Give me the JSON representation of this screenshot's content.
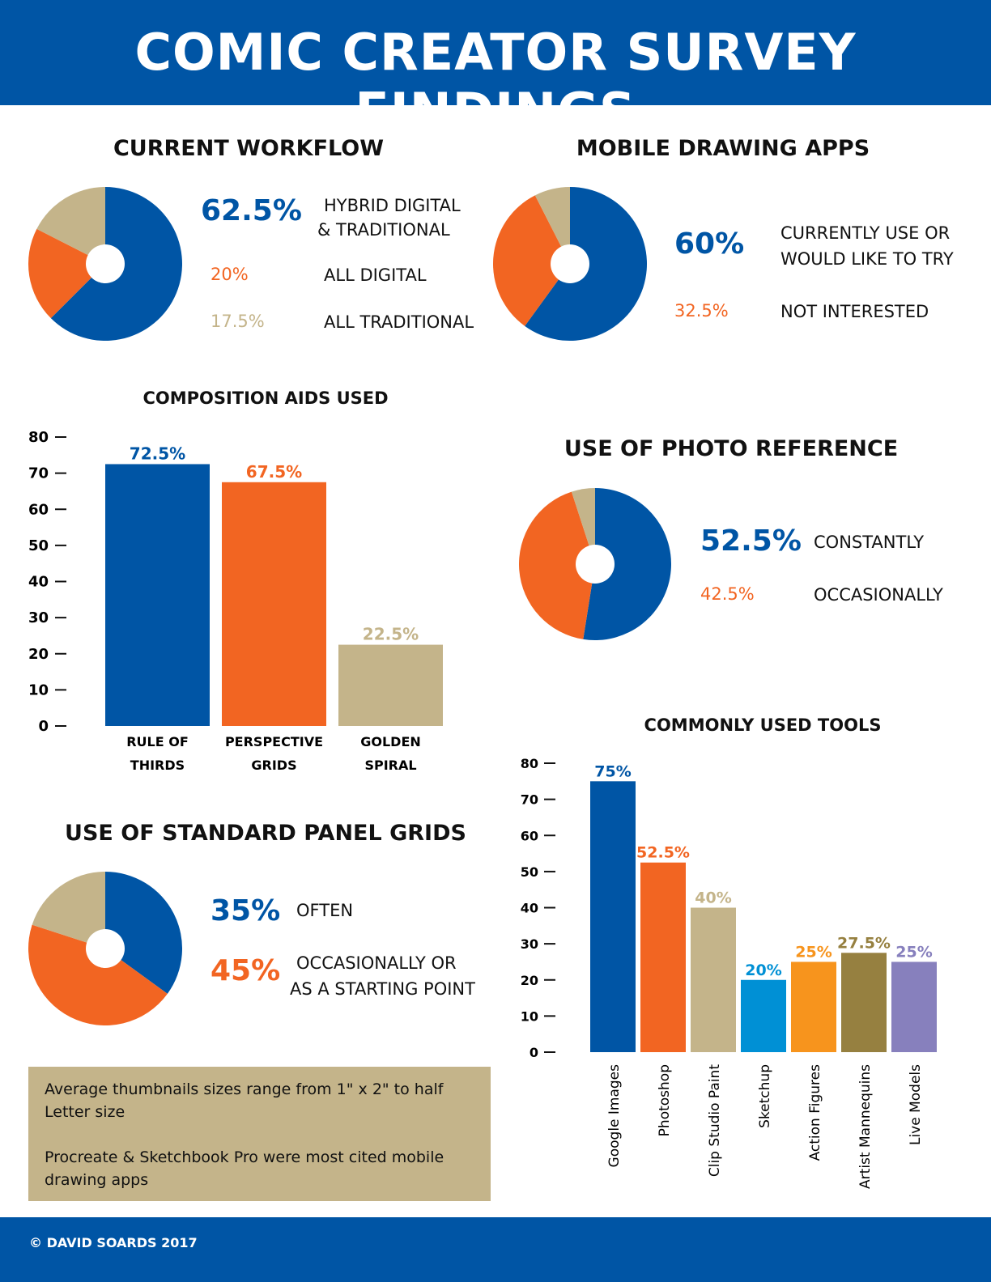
{
  "title": "COMIC CREATOR SURVEY FINDINGS",
  "colors": {
    "blue": "#0055A5",
    "orange": "#F26522",
    "tan": "#C4B48A",
    "sky": "#0090D5",
    "amber": "#F7941D",
    "olive": "#968040",
    "lavender": "#8780BD"
  },
  "chart_data": [
    {
      "type": "pie",
      "title": "CURRENT WORKFLOW",
      "donut": true,
      "slices": [
        {
          "label": "HYBRID DIGITAL & TRADITIONAL",
          "label_lines": [
            "HYBRID DIGITAL",
            "& TRADITIONAL"
          ],
          "value": 62.5,
          "display": "62.5%",
          "color": "#0055A5"
        },
        {
          "label": "ALL DIGITAL",
          "value": 20,
          "display": "20%",
          "color": "#F26522"
        },
        {
          "label": "ALL TRADITIONAL",
          "value": 17.5,
          "display": "17.5%",
          "color": "#C4B48A"
        }
      ]
    },
    {
      "type": "pie",
      "title": "MOBILE DRAWING APPS",
      "donut": true,
      "slices": [
        {
          "label": "CURRENTLY USE OR WOULD LIKE TO TRY",
          "label_lines": [
            "CURRENTLY USE OR",
            "WOULD LIKE TO TRY"
          ],
          "value": 60,
          "display": "60%",
          "color": "#0055A5"
        },
        {
          "label": "NOT INTERESTED",
          "value": 32.5,
          "display": "32.5%",
          "color": "#F26522"
        },
        {
          "label": "",
          "value": 7.5,
          "color": "#C4B48A"
        }
      ]
    },
    {
      "type": "bar",
      "title": "COMPOSITION AIDS USED",
      "ylim": [
        0,
        80
      ],
      "yticks": [
        0,
        10,
        20,
        30,
        40,
        50,
        60,
        70,
        80
      ],
      "categories": [
        "RULE OF THIRDS",
        "PERSPECTIVE GRIDS",
        "GOLDEN SPIRAL"
      ],
      "category_lines": [
        [
          "RULE OF",
          "THIRDS"
        ],
        [
          "PERSPECTIVE",
          "GRIDS"
        ],
        [
          "GOLDEN",
          "SPIRAL"
        ]
      ],
      "values": [
        72.5,
        67.5,
        22.5
      ],
      "data_labels": [
        "72.5%",
        "67.5%",
        "22.5%"
      ],
      "bar_colors": [
        "#0055A5",
        "#F26522",
        "#C4B48A"
      ],
      "grid": false
    },
    {
      "type": "pie",
      "title": "USE OF PHOTO REFERENCE",
      "donut": true,
      "slices": [
        {
          "label": "CONSTANTLY",
          "value": 52.5,
          "display": "52.5%",
          "color": "#0055A5"
        },
        {
          "label": "OCCASIONALLY",
          "value": 42.5,
          "display": "42.5%",
          "color": "#F26522"
        },
        {
          "label": "",
          "value": 5,
          "color": "#C4B48A"
        }
      ]
    },
    {
      "type": "bar",
      "title": "COMMONLY USED TOOLS",
      "ylim": [
        0,
        80
      ],
      "yticks": [
        0,
        10,
        20,
        30,
        40,
        50,
        60,
        70,
        80
      ],
      "categories": [
        "Google Images",
        "Photoshop",
        "Clip Studio Paint",
        "Sketchup",
        "Action Figures",
        "Artist Mannequins",
        "Live Models"
      ],
      "values": [
        75,
        52.5,
        40,
        20,
        25,
        27.5,
        25
      ],
      "data_labels": [
        "75%",
        "52.5%",
        "40%",
        "20%",
        "25%",
        "27.5%",
        "25%"
      ],
      "bar_colors": [
        "#0055A5",
        "#F26522",
        "#C4B48A",
        "#0090D5",
        "#F7941D",
        "#968040",
        "#8780BD"
      ],
      "grid": false
    },
    {
      "type": "pie",
      "title": "USE OF STANDARD PANEL GRIDS",
      "donut": true,
      "slices": [
        {
          "label": "OFTEN",
          "value": 35,
          "display": "35%",
          "color": "#0055A5"
        },
        {
          "label": "OCCASIONALLY OR AS A STARTING POINT",
          "label_lines": [
            "OCCASIONALLY OR",
            "AS A STARTING POINT"
          ],
          "value": 45,
          "display": "45%",
          "color": "#F26522"
        },
        {
          "label": "",
          "value": 20,
          "color": "#C4B48A"
        }
      ]
    }
  ],
  "notes": [
    "Average thumbnails sizes range from 1\" x 2\" to half Letter size",
    "Procreate & Sketchbook Pro were most cited mobile drawing apps"
  ],
  "footer": "© DAVID SOARDS 2017"
}
